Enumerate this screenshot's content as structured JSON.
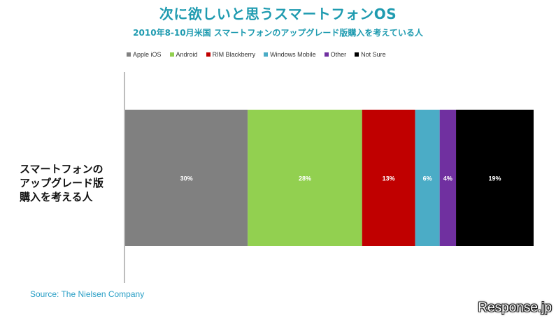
{
  "title": "次に欲しいと思うスマートフォンOS",
  "subtitle": "2010年8-10月米国 スマートフォンのアップグレード版購入を考えている人",
  "source": "Source: The Nielsen Company",
  "watermark": "Response.jp",
  "chart_data": {
    "type": "bar",
    "orientation": "horizontal-stacked",
    "categories": [
      "スマートフォンの\nアップグレード版\n購入を考える人"
    ],
    "xlim": [
      0,
      100
    ],
    "unit": "%",
    "legend_position": "top",
    "series": [
      {
        "name": "Apple iOS",
        "values": [
          30
        ],
        "label": "30%",
        "color": "#808080"
      },
      {
        "name": "Android",
        "values": [
          28
        ],
        "label": "28%",
        "color": "#92d050"
      },
      {
        "name": "RIM Blackberry",
        "values": [
          13
        ],
        "label": "13%",
        "color": "#c00000"
      },
      {
        "name": "Windows Mobile",
        "values": [
          6
        ],
        "label": "6%",
        "color": "#4bacc6"
      },
      {
        "name": "Other",
        "values": [
          4
        ],
        "label": "4%",
        "color": "#7030a0"
      },
      {
        "name": "Not Sure",
        "values": [
          19
        ],
        "label": "19%",
        "color": "#000000"
      }
    ]
  }
}
